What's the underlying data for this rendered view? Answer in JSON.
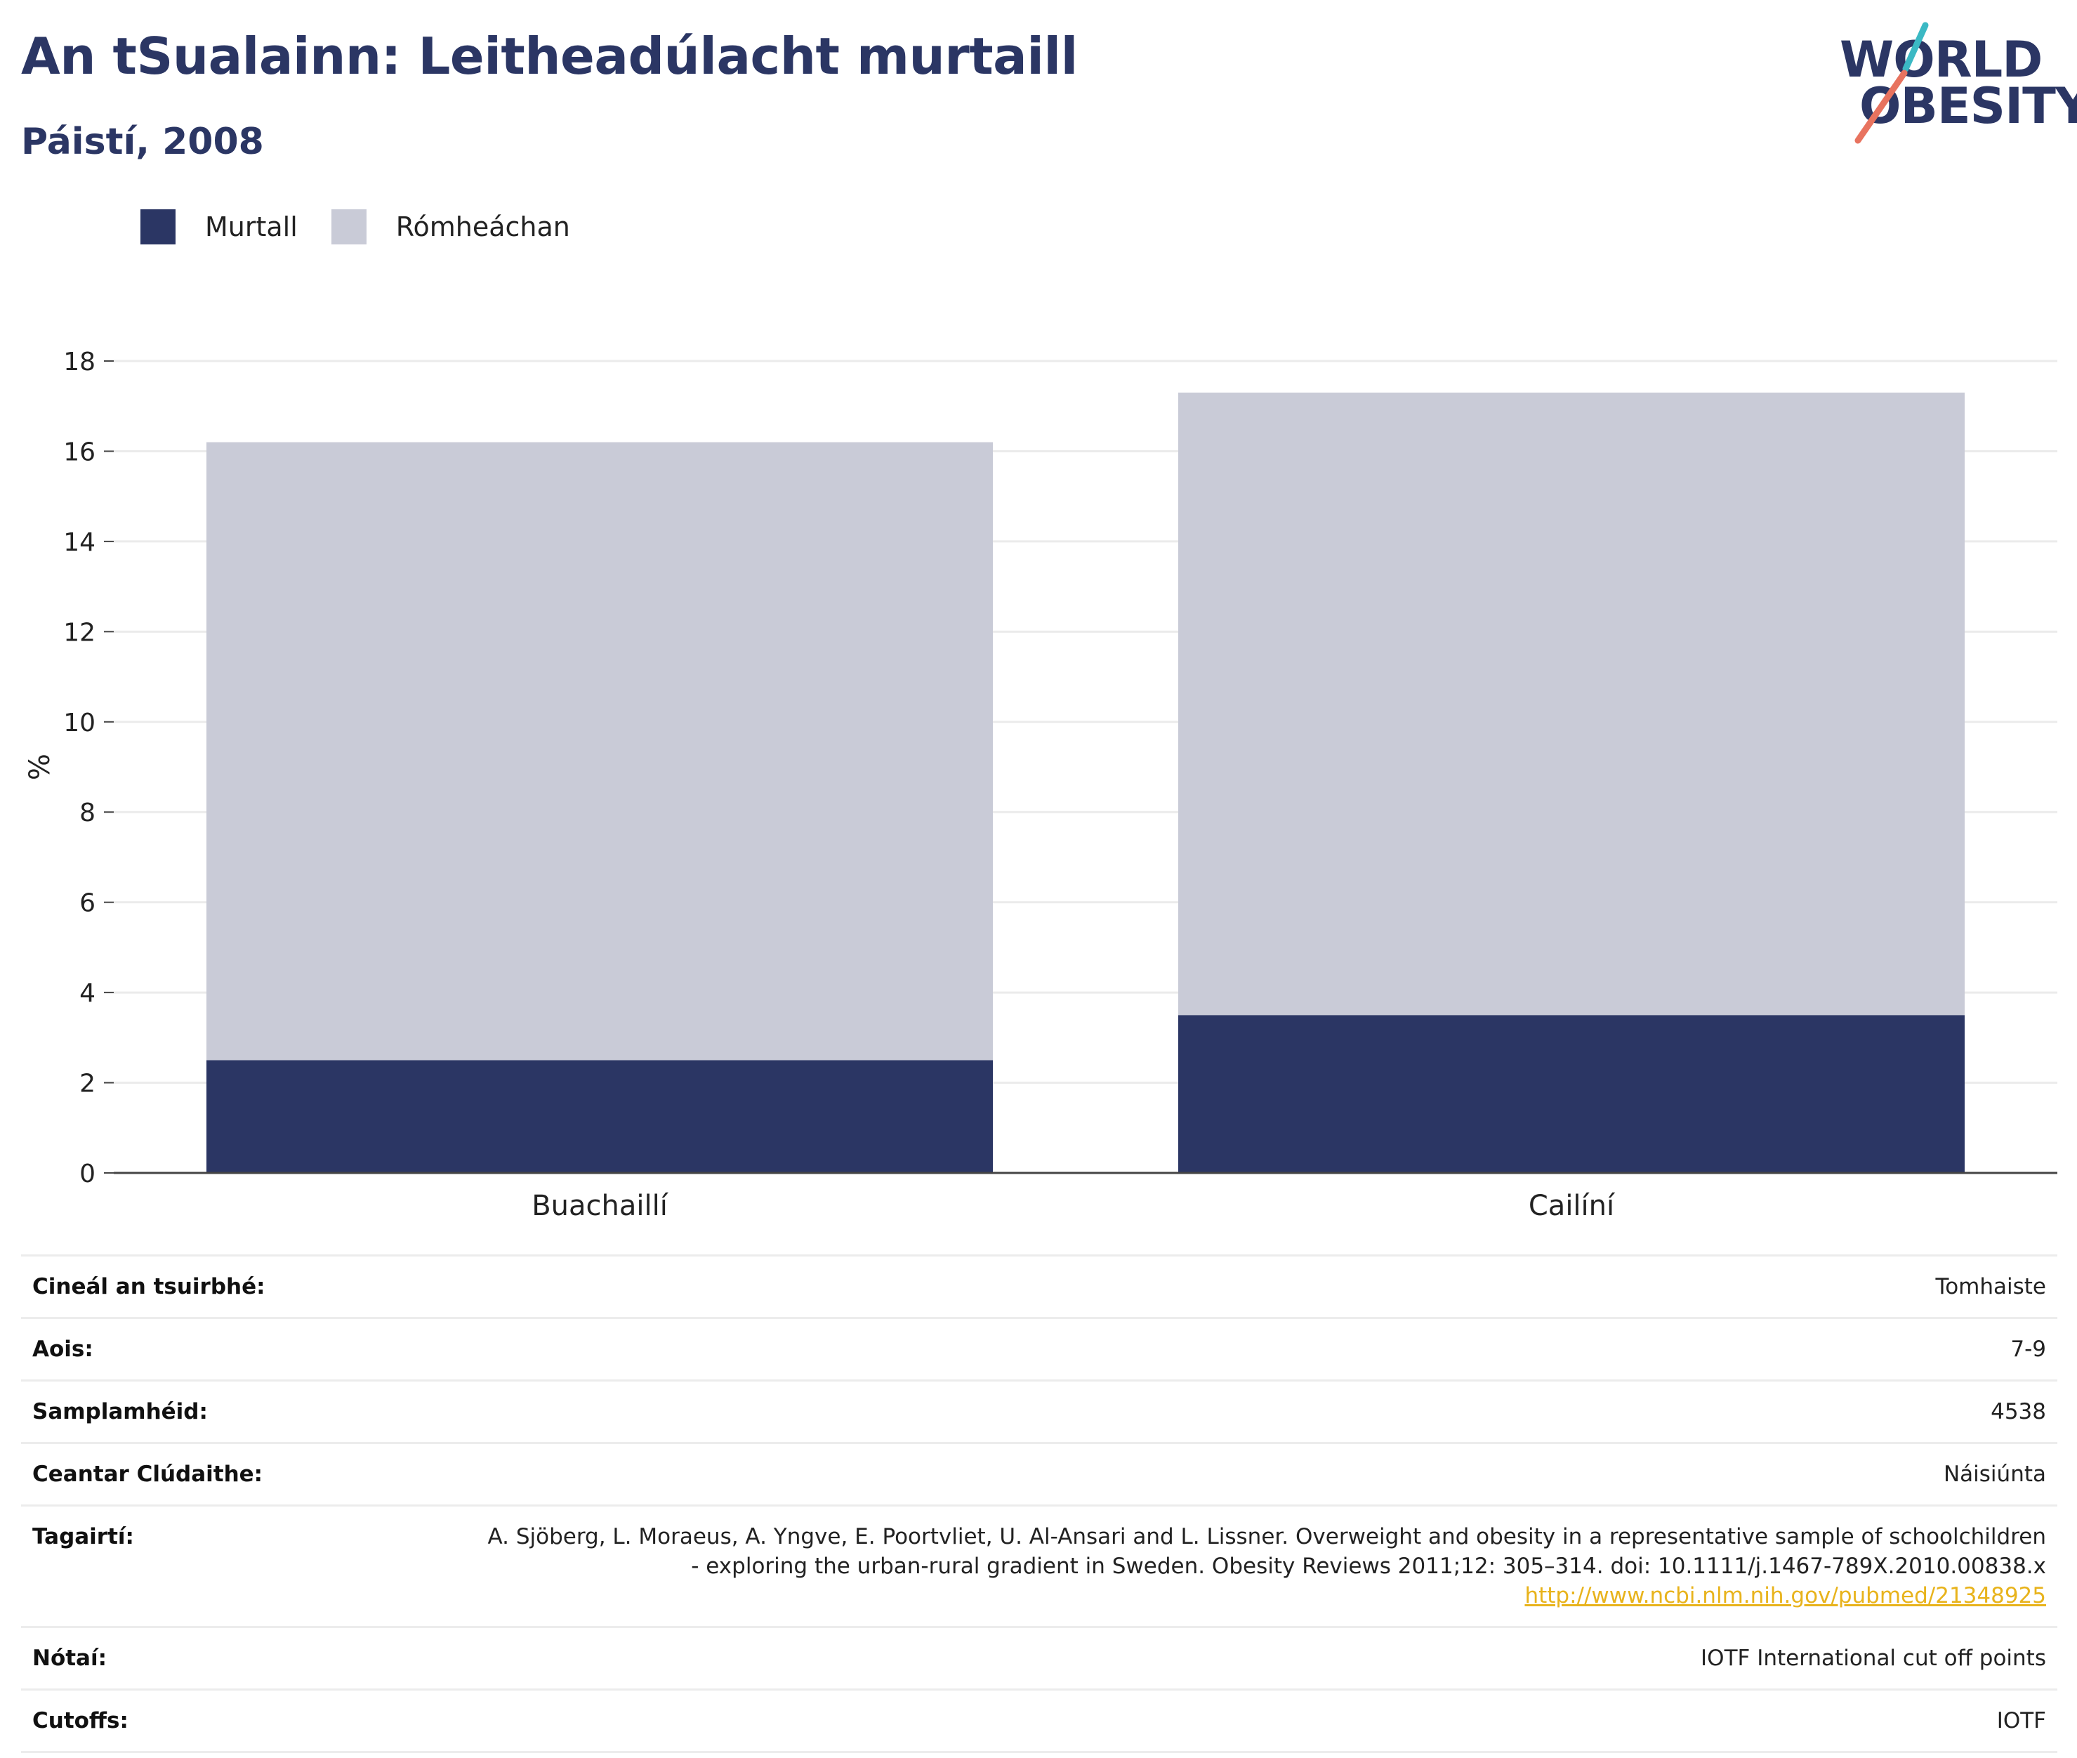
{
  "header": {
    "title": "An tSualainn: Leitheadúlacht murtaill",
    "subtitle": "Páistí, 2008"
  },
  "logo": {
    "line1": "WORLD",
    "line2": "OBESITY",
    "colors": {
      "navy": "#2b3664",
      "teal": "#3bb9c4",
      "coral": "#e8735f"
    }
  },
  "legend": [
    {
      "label": "Murtall",
      "color": "#2b3664"
    },
    {
      "label": "Rómheáchan",
      "color": "#c9cbd7"
    }
  ],
  "chart_data": {
    "type": "bar",
    "stacked": true,
    "categories": [
      "Buachaillí",
      "Cailíní"
    ],
    "series": [
      {
        "name": "Murtall",
        "values": [
          2.5,
          3.5
        ],
        "color": "#2b3664"
      },
      {
        "name": "Rómheáchan",
        "values": [
          13.7,
          13.8
        ],
        "color": "#c9cbd7"
      }
    ],
    "ylabel": "%",
    "ylim": [
      0,
      18
    ],
    "yticks": [
      0,
      2,
      4,
      6,
      8,
      10,
      12,
      14,
      16,
      18
    ],
    "grid": true
  },
  "info": {
    "survey_type": {
      "label": "Cineál an tsuirbhé:",
      "value": "Tomhaiste"
    },
    "age": {
      "label": "Aois:",
      "value": "7-9"
    },
    "sample_size": {
      "label": "Samplamhéid:",
      "value": "4538"
    },
    "coverage": {
      "label": "Ceantar Clúdaithe:",
      "value": "Náisiúnta"
    },
    "references": {
      "label": "Tagairtí:",
      "text": "A. Sjöberg, L. Moraeus, A. Yngve, E. Poortvliet, U. Al-Ansari and L. Lissner. Overweight and obesity in a representative sample of schoolchildren - exploring the urban-rural gradient in Sweden. Obesity Reviews 2011;12: 305–314. doi: 10.1111/j.1467-789X.2010.00838.x",
      "link": "http://www.ncbi.nlm.nih.gov/pubmed/21348925"
    },
    "notes": {
      "label": "Nótaí:",
      "value": "IOTF International cut off points"
    },
    "cutoffs": {
      "label": "Cutoffs:",
      "value": "IOTF"
    }
  }
}
